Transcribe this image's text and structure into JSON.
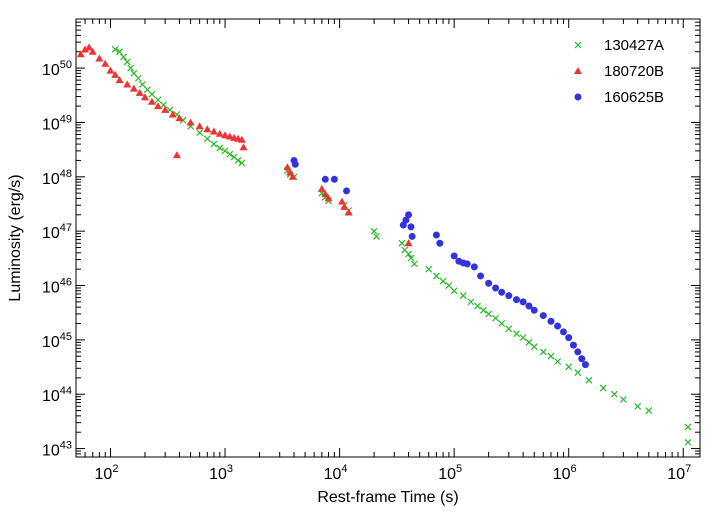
{
  "chart_data": {
    "type": "scatter",
    "xlabel": "Rest-frame Time (s)",
    "ylabel": "Luminosity (erg/s)",
    "xscale": "log",
    "yscale": "log",
    "xlim": [
      50,
      14000000
    ],
    "ylim": [
      7e+42,
      8e+50
    ],
    "x_ticks": [
      {
        "base": "10",
        "exp": "2",
        "value": 100
      },
      {
        "base": "10",
        "exp": "3",
        "value": 1000
      },
      {
        "base": "10",
        "exp": "4",
        "value": 10000
      },
      {
        "base": "10",
        "exp": "5",
        "value": 100000
      },
      {
        "base": "10",
        "exp": "6",
        "value": 1000000
      },
      {
        "base": "10",
        "exp": "7",
        "value": 10000000
      }
    ],
    "y_ticks": [
      {
        "base": "10",
        "exp": "43",
        "value": 1e+43
      },
      {
        "base": "10",
        "exp": "44",
        "value": 1e+44
      },
      {
        "base": "10",
        "exp": "45",
        "value": 1e+45
      },
      {
        "base": "10",
        "exp": "46",
        "value": 1e+46
      },
      {
        "base": "10",
        "exp": "47",
        "value": 1e+47
      },
      {
        "base": "10",
        "exp": "48",
        "value": 1e+48
      },
      {
        "base": "10",
        "exp": "49",
        "value": 1e+49
      },
      {
        "base": "10",
        "exp": "50",
        "value": 1e+50
      }
    ],
    "grid": false,
    "legend_position": "top-right",
    "series": [
      {
        "name": "130427A",
        "marker": "x",
        "color": "#22bb22",
        "points": [
          [
            110,
            2.2e+50
          ],
          [
            120,
            2e+50
          ],
          [
            130,
            1.6e+50
          ],
          [
            140,
            1.3e+50
          ],
          [
            150,
            1e+50
          ],
          [
            160,
            8e+49
          ],
          [
            175,
            6.5e+49
          ],
          [
            190,
            5e+49
          ],
          [
            210,
            4e+49
          ],
          [
            230,
            3.3e+49
          ],
          [
            260,
            2.6e+49
          ],
          [
            290,
            2.1e+49
          ],
          [
            330,
            1.7e+49
          ],
          [
            380,
            1.4e+49
          ],
          [
            430,
            1.1e+49
          ],
          [
            500,
            8.5e+48
          ],
          [
            600,
            6.5e+48
          ],
          [
            700,
            5e+48
          ],
          [
            800,
            4e+48
          ],
          [
            900,
            3.4e+48
          ],
          [
            1000,
            3e+48
          ],
          [
            1100,
            2.6e+48
          ],
          [
            1200,
            2.3e+48
          ],
          [
            1300,
            2e+48
          ],
          [
            1400,
            1.8e+48
          ],
          [
            3500,
            1.3e+48
          ],
          [
            3700,
            1.1e+48
          ],
          [
            4000,
            1e+48
          ],
          [
            7000,
            5e+47
          ],
          [
            7500,
            4.2e+47
          ],
          [
            8000,
            3.6e+47
          ],
          [
            11000,
            3e+47
          ],
          [
            12000,
            2.4e+47
          ],
          [
            20000,
            1e+47
          ],
          [
            21000,
            8e+46
          ],
          [
            35000,
            6e+46
          ],
          [
            37000,
            4.5e+46
          ],
          [
            40000,
            3.8e+46
          ],
          [
            42000,
            3.2e+46
          ],
          [
            45000,
            2.5e+46
          ],
          [
            60000,
            2e+46
          ],
          [
            70000,
            1.5e+46
          ],
          [
            80000,
            1.2e+46
          ],
          [
            90000,
            1e+46
          ],
          [
            100000,
            8e+45
          ],
          [
            120000,
            6.5e+45
          ],
          [
            140000,
            5e+45
          ],
          [
            160000,
            4.2e+45
          ],
          [
            180000,
            3.5e+45
          ],
          [
            200000,
            3e+45
          ],
          [
            230000,
            2.5e+45
          ],
          [
            260000,
            2e+45
          ],
          [
            300000,
            1.6e+45
          ],
          [
            350000,
            1.3e+45
          ],
          [
            400000,
            1.1e+45
          ],
          [
            450000,
            9e+44
          ],
          [
            500000,
            7.5e+44
          ],
          [
            600000,
            6e+44
          ],
          [
            700000,
            5e+44
          ],
          [
            800000,
            4e+44
          ],
          [
            1000000,
            3.2e+44
          ],
          [
            1200000,
            2.5e+44
          ],
          [
            1500000,
            1.8e+44
          ],
          [
            2000000,
            1.3e+44
          ],
          [
            2500000,
            1e+44
          ],
          [
            3000000,
            8e+43
          ],
          [
            4000000,
            6e+43
          ],
          [
            5000000,
            5e+43
          ],
          [
            11000000,
            2.5e+43
          ],
          [
            11000000,
            1.3e+43
          ]
        ]
      },
      {
        "name": "180720B",
        "marker": "triangle",
        "color": "#ee3333",
        "points": [
          [
            55,
            1.8e+50
          ],
          [
            60,
            2.2e+50
          ],
          [
            65,
            2.4e+50
          ],
          [
            70,
            2e+50
          ],
          [
            80,
            1.5e+50
          ],
          [
            90,
            1.2e+50
          ],
          [
            100,
            9e+49
          ],
          [
            110,
            7.5e+49
          ],
          [
            120,
            6e+49
          ],
          [
            140,
            5e+49
          ],
          [
            160,
            4.2e+49
          ],
          [
            180,
            3.5e+49
          ],
          [
            200,
            2.9e+49
          ],
          [
            230,
            2.4e+49
          ],
          [
            260,
            2e+49
          ],
          [
            300,
            1.7e+49
          ],
          [
            350,
            1.4e+49
          ],
          [
            400,
            1.2e+49
          ],
          [
            500,
            1e+49
          ],
          [
            600,
            8.5e+48
          ],
          [
            700,
            7.5e+48
          ],
          [
            800,
            6.8e+48
          ],
          [
            900,
            6.2e+48
          ],
          [
            1000,
            5.8e+48
          ],
          [
            1100,
            5.5e+48
          ],
          [
            1200,
            5.2e+48
          ],
          [
            1300,
            5e+48
          ],
          [
            1400,
            4.8e+48
          ],
          [
            1450,
            3.5e+48
          ],
          [
            380,
            2.5e+48
          ],
          [
            3500,
            1.5e+48
          ],
          [
            3700,
            1.2e+48
          ],
          [
            3900,
            1e+48
          ],
          [
            7000,
            6e+47
          ],
          [
            7500,
            4.8e+47
          ],
          [
            8000,
            4e+47
          ],
          [
            10500,
            3.5e+47
          ],
          [
            11000,
            2.8e+47
          ],
          [
            12000,
            2.2e+47
          ],
          [
            40000,
            6e+46
          ]
        ]
      },
      {
        "name": "160625B",
        "marker": "circle",
        "color": "#3333dd",
        "points": [
          [
            4000,
            2e+48
          ],
          [
            4100,
            1.7e+48
          ],
          [
            7500,
            9e+47
          ],
          [
            9000,
            9e+47
          ],
          [
            11500,
            5.5e+47
          ],
          [
            36000,
            1.3e+47
          ],
          [
            38000,
            1.6e+47
          ],
          [
            40000,
            2e+47
          ],
          [
            42000,
            1.2e+47
          ],
          [
            43000,
            8e+46
          ],
          [
            70000,
            8.5e+46
          ],
          [
            75000,
            6e+46
          ],
          [
            100000,
            3.5e+46
          ],
          [
            110000,
            2.8e+46
          ],
          [
            120000,
            2.6e+46
          ],
          [
            130000,
            2.5e+46
          ],
          [
            150000,
            2.2e+46
          ],
          [
            170000,
            1.5e+46
          ],
          [
            200000,
            1.1e+46
          ],
          [
            230000,
            9e+45
          ],
          [
            260000,
            7.5e+45
          ],
          [
            300000,
            6.5e+45
          ],
          [
            350000,
            5.5e+45
          ],
          [
            400000,
            5e+45
          ],
          [
            450000,
            4.2e+45
          ],
          [
            500000,
            3.5e+45
          ],
          [
            600000,
            2.8e+45
          ],
          [
            700000,
            2.2e+45
          ],
          [
            800000,
            1.8e+45
          ],
          [
            900000,
            1.4e+45
          ],
          [
            1000000,
            1.1e+45
          ],
          [
            1100000,
            8e+44
          ],
          [
            1200000,
            6e+44
          ],
          [
            1300000,
            4.5e+44
          ],
          [
            1400000,
            3.5e+44
          ]
        ]
      }
    ]
  }
}
